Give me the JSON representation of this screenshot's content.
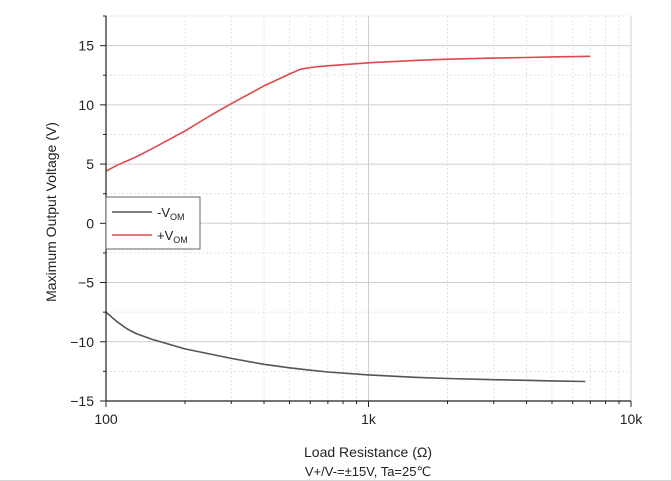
{
  "chart_data": {
    "type": "line",
    "title": "",
    "xlabel": "Load Resistance (Ω)",
    "ylabel": "Maximum Output Voltage (V)",
    "caption": "V+/V-=±15V, Ta=25℃",
    "x_scale": "log",
    "xlim": [
      100,
      10000
    ],
    "ylim": [
      -15,
      17.5
    ],
    "x_ticks": [
      {
        "value": 100,
        "label": "100"
      },
      {
        "value": 1000,
        "label": "1k"
      },
      {
        "value": 10000,
        "label": "10k"
      }
    ],
    "y_ticks": [
      {
        "value": 15,
        "label": "15"
      },
      {
        "value": 10,
        "label": "10"
      },
      {
        "value": 5,
        "label": "5"
      },
      {
        "value": 0,
        "label": "0"
      },
      {
        "value": -5,
        "label": "−5"
      },
      {
        "value": -10,
        "label": "−10"
      },
      {
        "value": -15,
        "label": "−15"
      }
    ],
    "grid": true,
    "legend_position": "center-left",
    "series": [
      {
        "name_main": "-V",
        "name_sub": "OM",
        "color": "#555555",
        "x": [
          100,
          110,
          120,
          130,
          150,
          200,
          300,
          400,
          500,
          600,
          700,
          1000,
          1500,
          2000,
          3000,
          4000,
          5000,
          6700
        ],
        "y": [
          -7.5,
          -8.3,
          -8.9,
          -9.3,
          -9.8,
          -10.6,
          -11.4,
          -11.9,
          -12.2,
          -12.4,
          -12.55,
          -12.8,
          -13.0,
          -13.1,
          -13.2,
          -13.25,
          -13.3,
          -13.35
        ]
      },
      {
        "name_main": "+V",
        "name_sub": "OM",
        "color": "#e0484c",
        "x": [
          100,
          110,
          130,
          150,
          200,
          250,
          300,
          400,
          500,
          550,
          600,
          700,
          1000,
          1500,
          2000,
          3000,
          4000,
          5000,
          7000
        ],
        "y": [
          4.4,
          4.9,
          5.6,
          6.3,
          7.8,
          9.1,
          10.1,
          11.6,
          12.6,
          13.0,
          13.15,
          13.3,
          13.55,
          13.75,
          13.85,
          13.95,
          14.0,
          14.05,
          14.1
        ]
      }
    ]
  }
}
